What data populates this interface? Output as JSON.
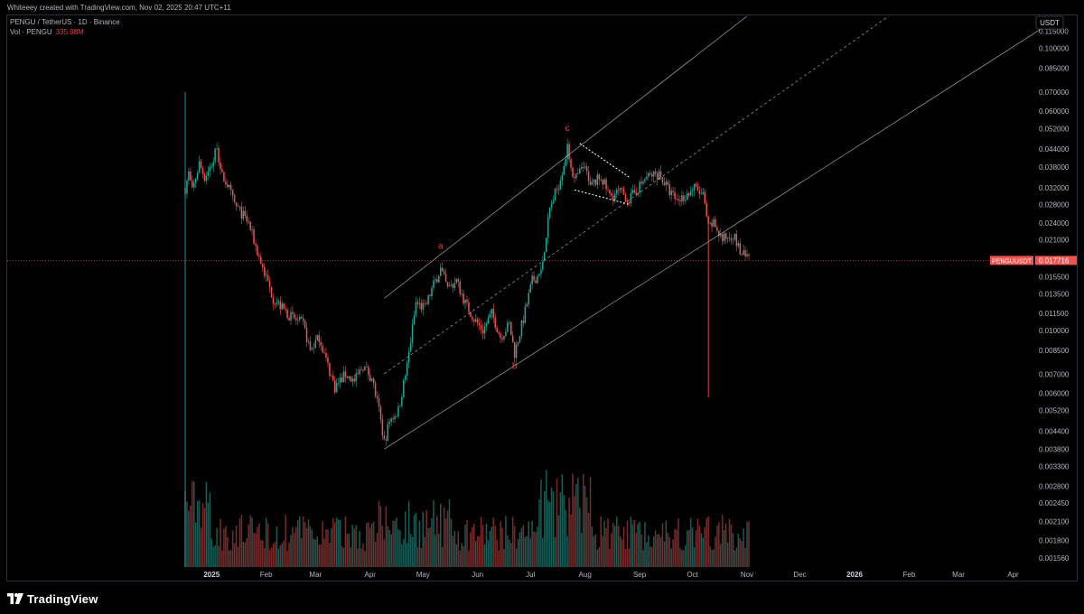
{
  "header": {
    "attribution": "Whiteeey created with TradingView.com, Nov 02, 2025 20:47 UTC+11"
  },
  "legend": {
    "symbol_line": "PENGU / TetherUS · 1D · Binance",
    "vol_label": "Vol · PENGU",
    "vol_value": "335.98M"
  },
  "currency_button": "USDT",
  "price_tag": {
    "symbol": "PENGUUSDT",
    "value": "0.017716"
  },
  "footer": {
    "brand": "TradingView"
  },
  "colors": {
    "up": "#26a69a",
    "down": "#ef5350",
    "bg": "#000000",
    "wave_label": "#f23645"
  },
  "chart_data": {
    "type": "candlestick",
    "yscale": "log",
    "ylim": [
      0.00145,
      0.13
    ],
    "y_ticks": [
      "0.115000",
      "0.100000",
      "0.085000",
      "0.070000",
      "0.060000",
      "0.052000",
      "0.044000",
      "0.038000",
      "0.032000",
      "0.028000",
      "0.024000",
      "0.021000",
      "0.018000",
      "0.015500",
      "0.013500",
      "0.011500",
      "0.010000",
      "0.008500",
      "0.007000",
      "0.006000",
      "0.005200",
      "0.004400",
      "0.003800",
      "0.003300",
      "0.002800",
      "0.002450",
      "0.002100",
      "0.001800",
      "0.001560"
    ],
    "x_ticks": [
      "2025",
      "Feb",
      "Mar",
      "Apr",
      "May",
      "Jun",
      "Jul",
      "Aug",
      "Sep",
      "Oct",
      "Nov",
      "Dec",
      "2026",
      "Feb",
      "Mar",
      "Apr"
    ],
    "x_start": "2024-12-17",
    "last_price": 0.017716,
    "price_path": [
      [
        "2024-12-17",
        0.032
      ],
      [
        "2024-12-19",
        0.036
      ],
      [
        "2024-12-21",
        0.031
      ],
      [
        "2024-12-25",
        0.039
      ],
      [
        "2024-12-28",
        0.035
      ],
      [
        "2025-01-02",
        0.04
      ],
      [
        "2025-01-04",
        0.046
      ],
      [
        "2025-01-06",
        0.036
      ],
      [
        "2025-01-10",
        0.033
      ],
      [
        "2025-01-14",
        0.028
      ],
      [
        "2025-01-18",
        0.026
      ],
      [
        "2025-01-22",
        0.024
      ],
      [
        "2025-01-27",
        0.019
      ],
      [
        "2025-01-31",
        0.016
      ],
      [
        "2025-02-05",
        0.013
      ],
      [
        "2025-02-10",
        0.012
      ],
      [
        "2025-02-15",
        0.0112
      ],
      [
        "2025-02-22",
        0.0105
      ],
      [
        "2025-02-26",
        0.0085
      ],
      [
        "2025-03-03",
        0.0095
      ],
      [
        "2025-03-08",
        0.0075
      ],
      [
        "2025-03-12",
        0.0063
      ],
      [
        "2025-03-18",
        0.007
      ],
      [
        "2025-03-23",
        0.0066
      ],
      [
        "2025-03-28",
        0.0075
      ],
      [
        "2025-04-02",
        0.0068
      ],
      [
        "2025-04-06",
        0.0052
      ],
      [
        "2025-04-09",
        0.004
      ],
      [
        "2025-04-12",
        0.0048
      ],
      [
        "2025-04-17",
        0.0052
      ],
      [
        "2025-04-22",
        0.0075
      ],
      [
        "2025-04-27",
        0.0125
      ],
      [
        "2025-05-02",
        0.012
      ],
      [
        "2025-05-07",
        0.0145
      ],
      [
        "2025-05-11",
        0.0165
      ],
      [
        "2025-05-15",
        0.014
      ],
      [
        "2025-05-20",
        0.015
      ],
      [
        "2025-05-25",
        0.0125
      ],
      [
        "2025-05-30",
        0.011
      ],
      [
        "2025-06-04",
        0.01
      ],
      [
        "2025-06-09",
        0.0115
      ],
      [
        "2025-06-14",
        0.0095
      ],
      [
        "2025-06-19",
        0.0105
      ],
      [
        "2025-06-22",
        0.0083
      ],
      [
        "2025-06-27",
        0.011
      ],
      [
        "2025-07-02",
        0.015
      ],
      [
        "2025-07-07",
        0.016
      ],
      [
        "2025-07-12",
        0.027
      ],
      [
        "2025-07-17",
        0.033
      ],
      [
        "2025-07-22",
        0.044
      ],
      [
        "2025-07-26",
        0.034
      ],
      [
        "2025-07-31",
        0.038
      ],
      [
        "2025-08-05",
        0.033
      ],
      [
        "2025-08-10",
        0.035
      ],
      [
        "2025-08-15",
        0.03
      ],
      [
        "2025-08-21",
        0.031
      ],
      [
        "2025-08-26",
        0.029
      ],
      [
        "2025-08-31",
        0.032
      ],
      [
        "2025-09-05",
        0.035
      ],
      [
        "2025-09-12",
        0.036
      ],
      [
        "2025-09-18",
        0.031
      ],
      [
        "2025-09-22",
        0.029
      ],
      [
        "2025-09-27",
        0.03
      ],
      [
        "2025-10-02",
        0.032
      ],
      [
        "2025-10-07",
        0.03
      ],
      [
        "2025-10-10",
        0.023
      ],
      [
        "2025-10-13",
        0.024
      ],
      [
        "2025-10-18",
        0.021
      ],
      [
        "2025-10-24",
        0.022
      ],
      [
        "2025-10-28",
        0.019
      ],
      [
        "2025-11-02",
        0.0177
      ]
    ],
    "wicks": [
      [
        "2024-12-17",
        0.00145,
        0.07
      ],
      [
        "2025-10-10",
        0.0058,
        0.024
      ]
    ],
    "wave_labels": [
      {
        "text": "a",
        "date": "2025-05-11",
        "price": 0.0195
      },
      {
        "text": "b",
        "date": "2025-06-22",
        "price": 0.0073
      },
      {
        "text": "c",
        "date": "2025-07-22",
        "price": 0.051
      }
    ],
    "channel": {
      "lower": [
        [
          "2025-04-09",
          0.0038
        ],
        [
          "2025-11-02",
          0.0255
        ]
      ],
      "upper": [
        [
          "2025-04-09",
          0.013
        ],
        [
          "2025-07-27",
          0.044
        ]
      ],
      "extend_to": "2026-04-20"
    },
    "pennant": {
      "top": [
        [
          "2025-07-29",
          0.046
        ],
        [
          "2025-08-26",
          0.035
        ]
      ],
      "bottom": [
        [
          "2025-07-26",
          0.0315
        ],
        [
          "2025-08-26",
          0.028
        ]
      ]
    },
    "volume": {
      "label": "Vol · PENGU",
      "last": "335.98M"
    }
  }
}
